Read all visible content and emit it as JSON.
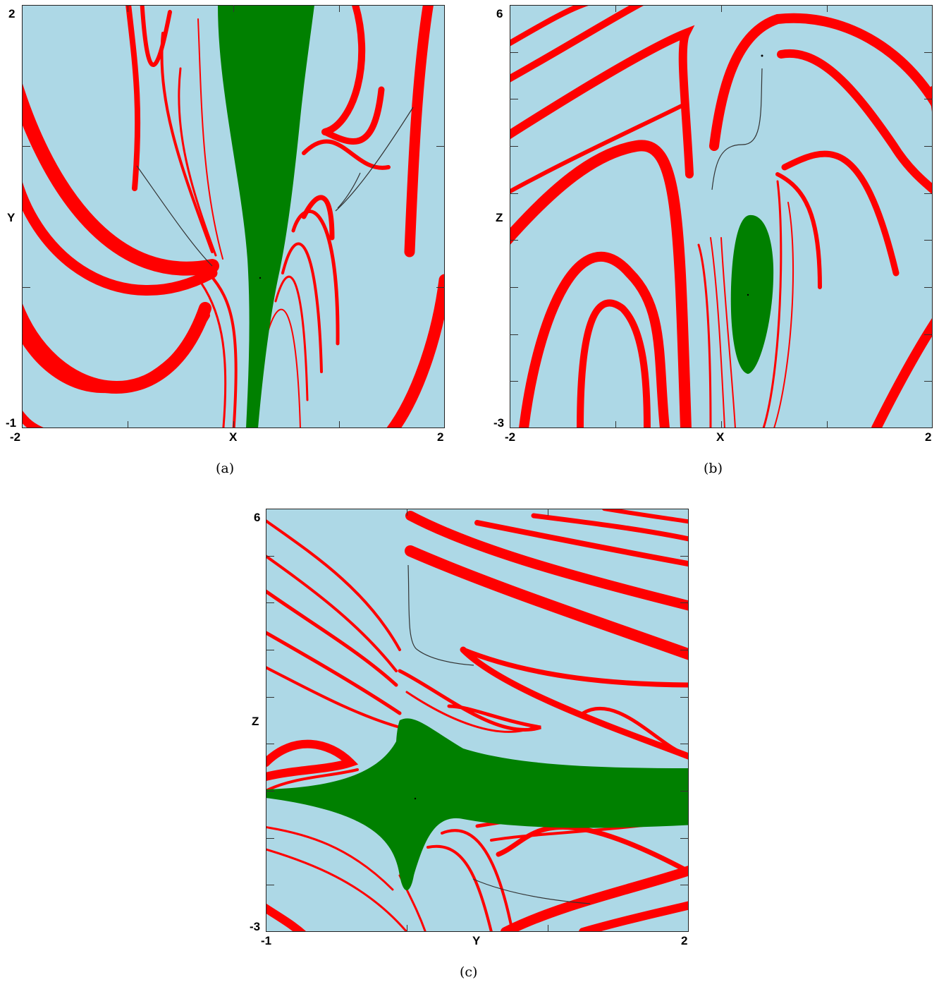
{
  "colors": {
    "background": "#add8e6",
    "red_band": "#ff0000",
    "green_basin": "#008000",
    "curve": "#333333"
  },
  "panels": [
    {
      "caption": "(a)",
      "xlabel": "X",
      "ylabel": "Y",
      "x_range": [
        "-2",
        "2"
      ],
      "y_range": [
        "-1",
        "2"
      ]
    },
    {
      "caption": "(b)",
      "xlabel": "X",
      "ylabel": "Z",
      "x_range": [
        "-2",
        "2"
      ],
      "y_range": [
        "-3",
        "6"
      ]
    },
    {
      "caption": "(c)",
      "xlabel": "Y",
      "ylabel": "Z",
      "x_range": [
        "-1",
        "2"
      ],
      "y_range": [
        "-3",
        "6"
      ]
    }
  ]
}
